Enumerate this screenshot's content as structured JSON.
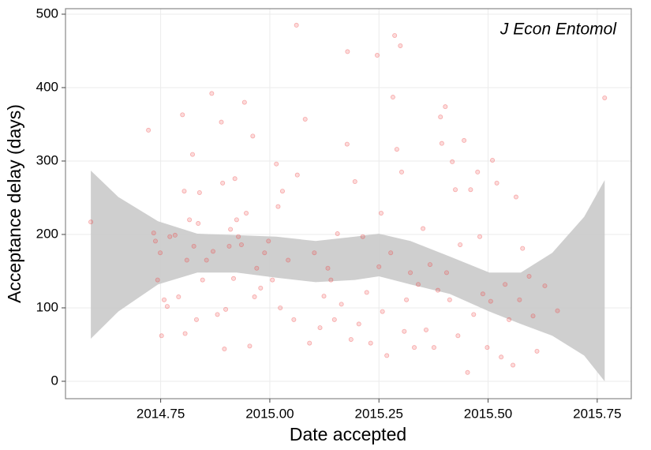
{
  "chart_data": {
    "type": "scatter",
    "annotation": "J Econ Entomol",
    "x_label": "Date accepted",
    "y_label": "Acceptance delay (days)",
    "color": "#ee4444",
    "x": [
      2014.59,
      2014.722,
      2014.734,
      2014.738,
      2014.749,
      2014.743,
      2014.752,
      2014.758,
      2014.765,
      2014.771,
      2014.783,
      2014.791,
      2014.8,
      2014.804,
      2014.806,
      2014.81,
      2014.816,
      2014.823,
      2014.826,
      2014.832,
      2014.836,
      2014.839,
      2014.846,
      2014.855,
      2014.867,
      2014.87,
      2014.88,
      2014.889,
      2014.892,
      2014.896,
      2014.899,
      2014.907,
      2014.91,
      2014.917,
      2014.92,
      2014.924,
      2014.928,
      2014.935,
      2014.942,
      2014.946,
      2014.954,
      2014.961,
      2014.965,
      2014.97,
      2014.979,
      2014.988,
      2014.997,
      2015.006,
      2015.015,
      2015.019,
      2015.024,
      2015.029,
      2015.042,
      2015.055,
      2015.061,
      2015.063,
      2015.081,
      2015.091,
      2015.102,
      2015.115,
      2015.124,
      2015.133,
      2015.14,
      2015.148,
      2015.155,
      2015.164,
      2015.177,
      2015.178,
      2015.186,
      2015.195,
      2015.204,
      2015.213,
      2015.222,
      2015.231,
      2015.246,
      2015.25,
      2015.255,
      2015.258,
      2015.268,
      2015.277,
      2015.282,
      2015.286,
      2015.291,
      2015.299,
      2015.302,
      2015.308,
      2015.313,
      2015.322,
      2015.331,
      2015.34,
      2015.351,
      2015.358,
      2015.367,
      2015.376,
      2015.385,
      2015.391,
      2015.394,
      2015.402,
      2015.405,
      2015.412,
      2015.418,
      2015.425,
      2015.431,
      2015.436,
      2015.445,
      2015.453,
      2015.46,
      2015.467,
      2015.476,
      2015.481,
      2015.488,
      2015.498,
      2015.506,
      2015.51,
      2015.52,
      2015.53,
      2015.539,
      2015.548,
      2015.557,
      2015.564,
      2015.572,
      2015.579,
      2015.594,
      2015.603,
      2015.612,
      2015.63,
      2015.659,
      2015.767
    ],
    "values": [
      217,
      342,
      202,
      191,
      175,
      138,
      62,
      111,
      102,
      197,
      199,
      115,
      363,
      259,
      65,
      165,
      220,
      309,
      184,
      84,
      215,
      257,
      138,
      165,
      392,
      177,
      91,
      353,
      270,
      44,
      98,
      184,
      207,
      140,
      276,
      220,
      197,
      186,
      380,
      229,
      48,
      334,
      115,
      154,
      127,
      175,
      191,
      138,
      296,
      238,
      100,
      259,
      165,
      84,
      485,
      281,
      357,
      52,
      175,
      73,
      116,
      154,
      138,
      84,
      201,
      105,
      323,
      449,
      57,
      272,
      78,
      197,
      121,
      52,
      444,
      156,
      229,
      95,
      35,
      175,
      387,
      471,
      316,
      457,
      285,
      68,
      111,
      148,
      46,
      132,
      208,
      70,
      159,
      46,
      124,
      360,
      324,
      374,
      148,
      111,
      299,
      261,
      62,
      186,
      328,
      12,
      261,
      91,
      285,
      197,
      119,
      46,
      109,
      301,
      270,
      33,
      132,
      84,
      22,
      251,
      111,
      181,
      143,
      89,
      41,
      130,
      96,
      386
    ],
    "band": {
      "color": "#cccccc",
      "x": [
        2014.59,
        2014.653,
        2014.744,
        2014.834,
        2014.924,
        2015.015,
        2015.105,
        2015.195,
        2015.25,
        2015.322,
        2015.412,
        2015.503,
        2015.575,
        2015.647,
        2015.72,
        2015.767
      ],
      "upper": [
        287,
        251,
        218,
        201,
        199,
        197,
        191,
        197,
        201,
        191,
        170,
        148,
        148,
        175,
        224,
        274
      ],
      "lower": [
        58,
        95,
        132,
        148,
        148,
        141,
        135,
        138,
        143,
        132,
        119,
        95,
        78,
        62,
        35,
        0
      ]
    },
    "xlim": [
      2014.532,
      2015.828
    ],
    "ylim": [
      -23.7,
      507.5
    ],
    "xticks": [
      {
        "value": 2014.75,
        "label": "2014.75"
      },
      {
        "value": 2015,
        "label": "2015.00"
      },
      {
        "value": 2015.25,
        "label": "2015.25"
      },
      {
        "value": 2015.5,
        "label": "2015.50"
      },
      {
        "value": 2015.75,
        "label": "2015.75"
      }
    ],
    "yticks": [
      0,
      100,
      200,
      300,
      400,
      500
    ],
    "grid": true
  }
}
